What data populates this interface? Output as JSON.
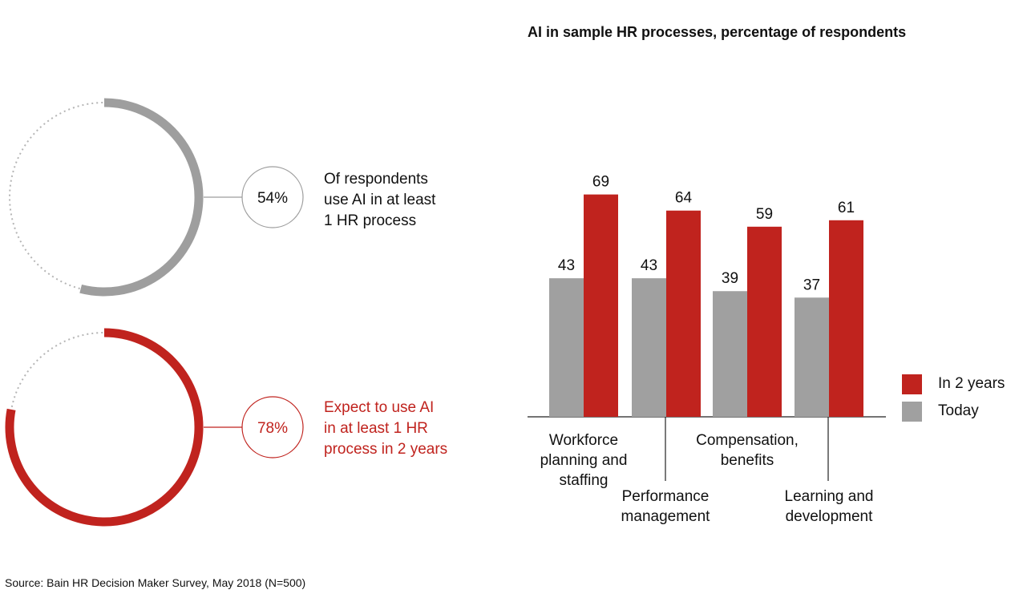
{
  "title": "AI in sample HR processes, percentage of respondents",
  "stats": [
    {
      "value": "54%",
      "fraction": 0.54,
      "lines": [
        "Of respondents",
        "use AI in at least",
        "1 HR process"
      ],
      "color": "#9e9e9e"
    },
    {
      "value": "78%",
      "fraction": 0.78,
      "lines": [
        "Expect to use AI",
        "in at least 1 HR",
        "process in 2 years"
      ],
      "color": "#c0231e"
    }
  ],
  "category_labels": [
    [
      "Workforce",
      "planning and",
      "staffing"
    ],
    [
      "Performance",
      "management"
    ],
    [
      "Compensation,",
      "benefits"
    ],
    [
      "Learning and",
      "development"
    ]
  ],
  "legend": [
    {
      "label": "In 2 years",
      "color": "#c0231e"
    },
    {
      "label": "Today",
      "color": "#a0a0a0"
    }
  ],
  "source": "Source: Bain HR Decision Maker Survey, May 2018 (N=500)",
  "chart_data": {
    "type": "bar",
    "title": "AI in sample HR processes, percentage of respondents",
    "categories": [
      "Workforce planning and staffing",
      "Performance management",
      "Compensation, benefits",
      "Learning and development"
    ],
    "series": [
      {
        "name": "Today",
        "values": [
          43,
          43,
          39,
          37
        ],
        "color": "#a0a0a0"
      },
      {
        "name": "In 2 years",
        "values": [
          69,
          64,
          59,
          61
        ],
        "color": "#c0231e"
      }
    ],
    "ylim": [
      0,
      75
    ],
    "grid": false,
    "legend_position": "right"
  }
}
